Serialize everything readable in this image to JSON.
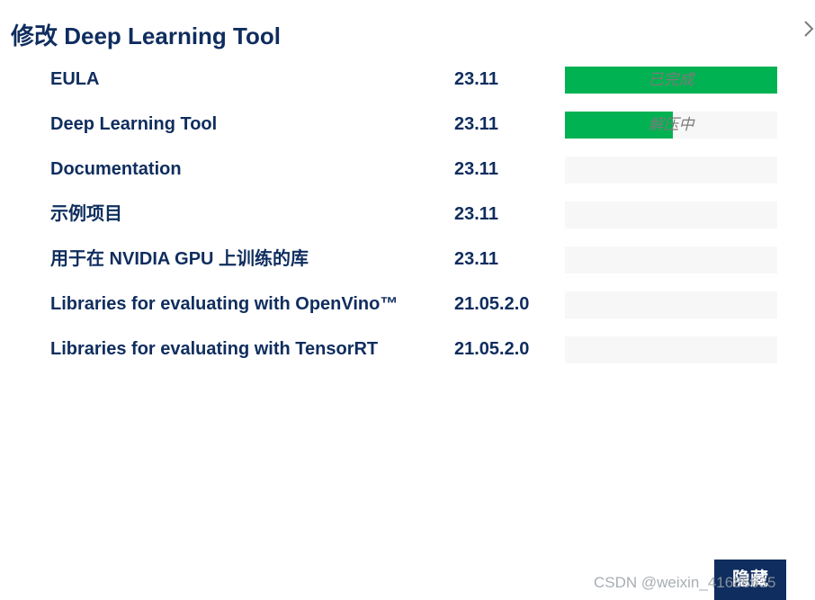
{
  "title": "修改 Deep Learning Tool",
  "components": [
    {
      "name": "EULA",
      "version": "23.11",
      "progress": 1.0,
      "status": "已完成"
    },
    {
      "name": "Deep Learning Tool",
      "version": "23.11",
      "progress": 0.51,
      "status": "解压中"
    },
    {
      "name": "Documentation",
      "version": "23.11",
      "progress": 0,
      "status": ""
    },
    {
      "name": "示例项目",
      "version": "23.11",
      "progress": 0,
      "status": ""
    },
    {
      "name": "用于在 NVIDIA GPU 上训练的库",
      "version": "23.11",
      "progress": 0,
      "status": ""
    },
    {
      "name": "Libraries for evaluating with OpenVino™",
      "version": "21.05.2.0",
      "progress": 0,
      "status": ""
    },
    {
      "name": "Libraries for evaluating with TensorRT",
      "version": "21.05.2.0",
      "progress": 0,
      "status": ""
    }
  ],
  "hide_button_label": "隐藏",
  "watermark": "CSDN @weixin_41686635",
  "colors": {
    "primary": "#0f2d5e",
    "progress_fill": "#00b251",
    "progress_track": "#f7f7f7",
    "status_text": "#7b7b7b"
  },
  "icons": {
    "close": "chevron-right-icon"
  }
}
